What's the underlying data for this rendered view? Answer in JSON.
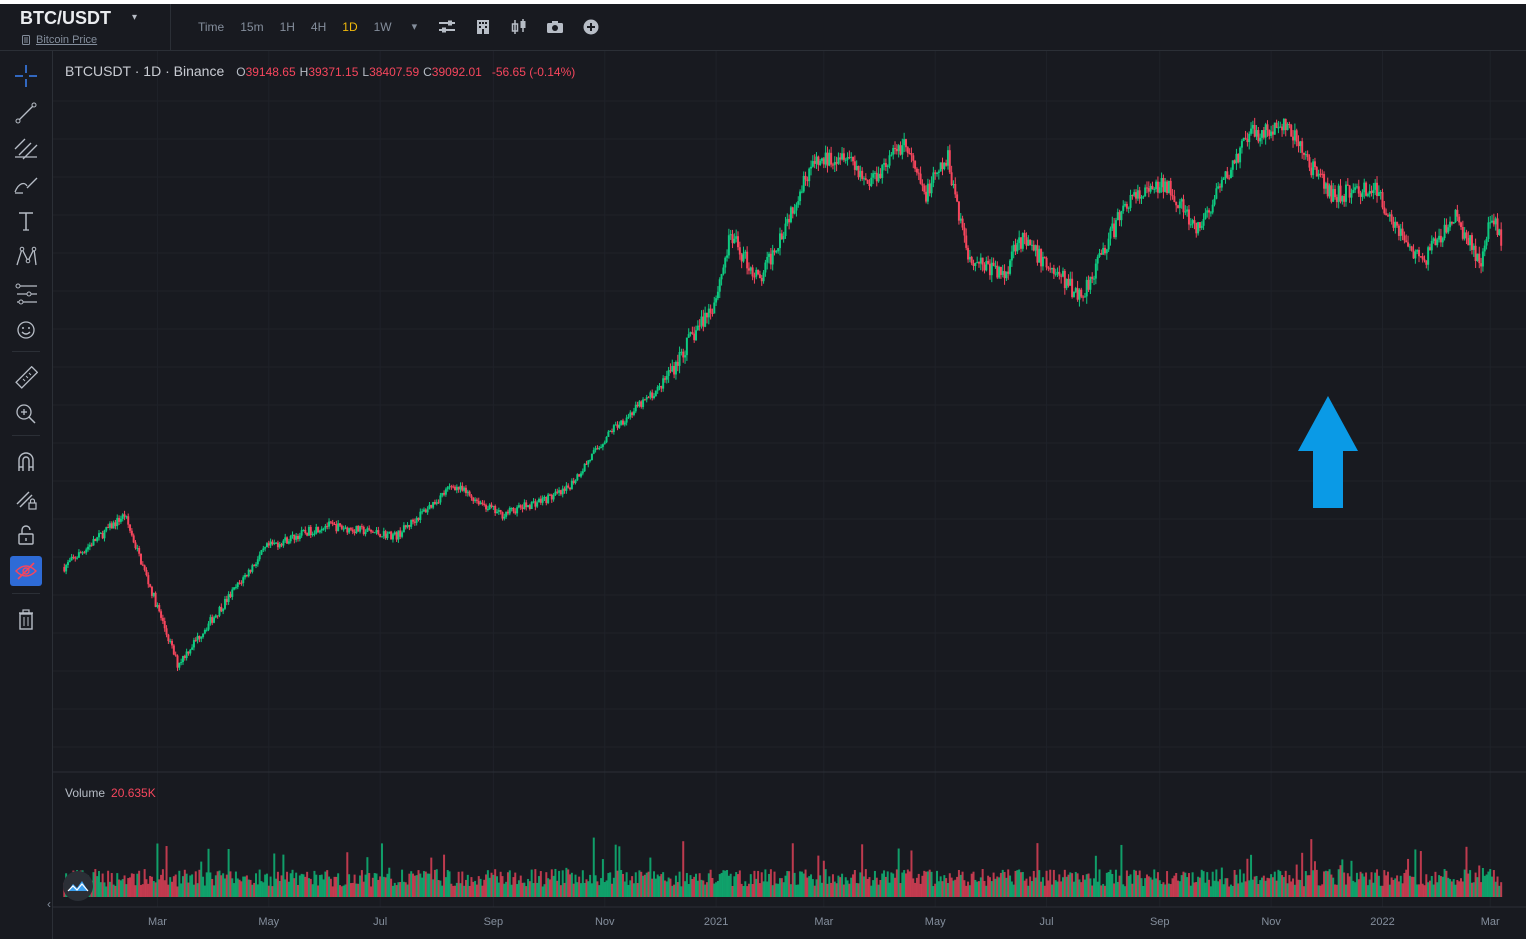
{
  "header": {
    "symbol": "BTC/USDT",
    "symbol_caret": "▾",
    "sub_label": "Bitcoin Price",
    "timeframes": [
      "Time",
      "15m",
      "1H",
      "4H",
      "1D",
      "1W"
    ],
    "active_timeframe": "1D",
    "more_caret": "▾",
    "icons": [
      "indicator-settings-icon",
      "buildings-icon",
      "chart-type-icon",
      "camera-icon",
      "add-icon"
    ]
  },
  "legend": {
    "meta": "BTCUSDT · 1D · Binance",
    "o_label": "O",
    "o_value": "39148.65",
    "h_label": "H",
    "h_value": "39371.15",
    "l_label": "L",
    "l_value": "38407.59",
    "c_label": "C",
    "c_value": "39092.01",
    "change": "-56.65 (-0.14%)"
  },
  "volume_legend": {
    "label": "Volume",
    "value": "20.635K"
  },
  "left_tools": [
    "crosshair-icon",
    "trend-line-icon",
    "fib-icon",
    "brush-icon",
    "text-icon",
    "pattern-icon",
    "forecast-icon",
    "emoji-icon",
    "ruler-icon",
    "zoom-in-icon",
    "magnet-icon",
    "pencil-lock-icon",
    "lock-icon",
    "hide-icon",
    "trash-icon"
  ],
  "colors": {
    "up": "#0ecb81",
    "down": "#f6465d",
    "accent": "#f0b90b",
    "arrow": "#0a9ae6",
    "background": "#181a20"
  },
  "chart_data": {
    "type": "candlestick",
    "symbol": "BTCUSDT",
    "interval": "1D",
    "exchange": "Binance",
    "x_tick_labels": [
      "Mar",
      "May",
      "Jul",
      "Sep",
      "Nov",
      "2021",
      "Mar",
      "May",
      "Jul",
      "Sep",
      "Nov",
      "2022",
      "Mar"
    ],
    "x_tick_dates": [
      "2020-03-01",
      "2020-05-01",
      "2020-07-01",
      "2020-09-01",
      "2020-11-01",
      "2021-01-01",
      "2021-03-01",
      "2021-05-01",
      "2021-07-01",
      "2021-09-01",
      "2021-11-01",
      "2022-01-01",
      "2022-03-01"
    ],
    "approx_close_path": [
      {
        "date": "2020-01-10",
        "close": 7900
      },
      {
        "date": "2020-02-12",
        "close": 10200
      },
      {
        "date": "2020-03-12",
        "close": 4900
      },
      {
        "date": "2020-04-30",
        "close": 8700
      },
      {
        "date": "2020-06-01",
        "close": 9700
      },
      {
        "date": "2020-07-10",
        "close": 9200
      },
      {
        "date": "2020-08-10",
        "close": 11800
      },
      {
        "date": "2020-09-05",
        "close": 10200
      },
      {
        "date": "2020-10-10",
        "close": 11400
      },
      {
        "date": "2020-11-05",
        "close": 15500
      },
      {
        "date": "2020-12-01",
        "close": 19000
      },
      {
        "date": "2020-12-31",
        "close": 29000
      },
      {
        "date": "2021-01-09",
        "close": 40000
      },
      {
        "date": "2021-01-25",
        "close": 32000
      },
      {
        "date": "2021-02-21",
        "close": 56000
      },
      {
        "date": "2021-03-13",
        "close": 61000
      },
      {
        "date": "2021-03-25",
        "close": 52000
      },
      {
        "date": "2021-04-14",
        "close": 63500
      },
      {
        "date": "2021-04-25",
        "close": 49000
      },
      {
        "date": "2021-05-08",
        "close": 58500
      },
      {
        "date": "2021-05-19",
        "close": 36500
      },
      {
        "date": "2021-06-08",
        "close": 33000
      },
      {
        "date": "2021-06-15",
        "close": 40000
      },
      {
        "date": "2021-07-20",
        "close": 29800
      },
      {
        "date": "2021-08-14",
        "close": 47500
      },
      {
        "date": "2021-09-06",
        "close": 51800
      },
      {
        "date": "2021-09-21",
        "close": 40500
      },
      {
        "date": "2021-10-20",
        "close": 66000
      },
      {
        "date": "2021-11-10",
        "close": 68500
      },
      {
        "date": "2021-11-26",
        "close": 54000
      },
      {
        "date": "2021-12-04",
        "close": 49000
      },
      {
        "date": "2021-12-27",
        "close": 50800
      },
      {
        "date": "2022-01-22",
        "close": 35000
      },
      {
        "date": "2022-02-10",
        "close": 44000
      },
      {
        "date": "2022-02-24",
        "close": 35000
      },
      {
        "date": "2022-03-02",
        "close": 44400
      },
      {
        "date": "2022-03-07",
        "close": 39092
      }
    ],
    "last_candle": {
      "open": 39148.65,
      "high": 39371.15,
      "low": 38407.59,
      "close": 39092.01
    },
    "volume_last": "20.635K",
    "annotation": "up-arrow below 2021-12-04 wick"
  }
}
